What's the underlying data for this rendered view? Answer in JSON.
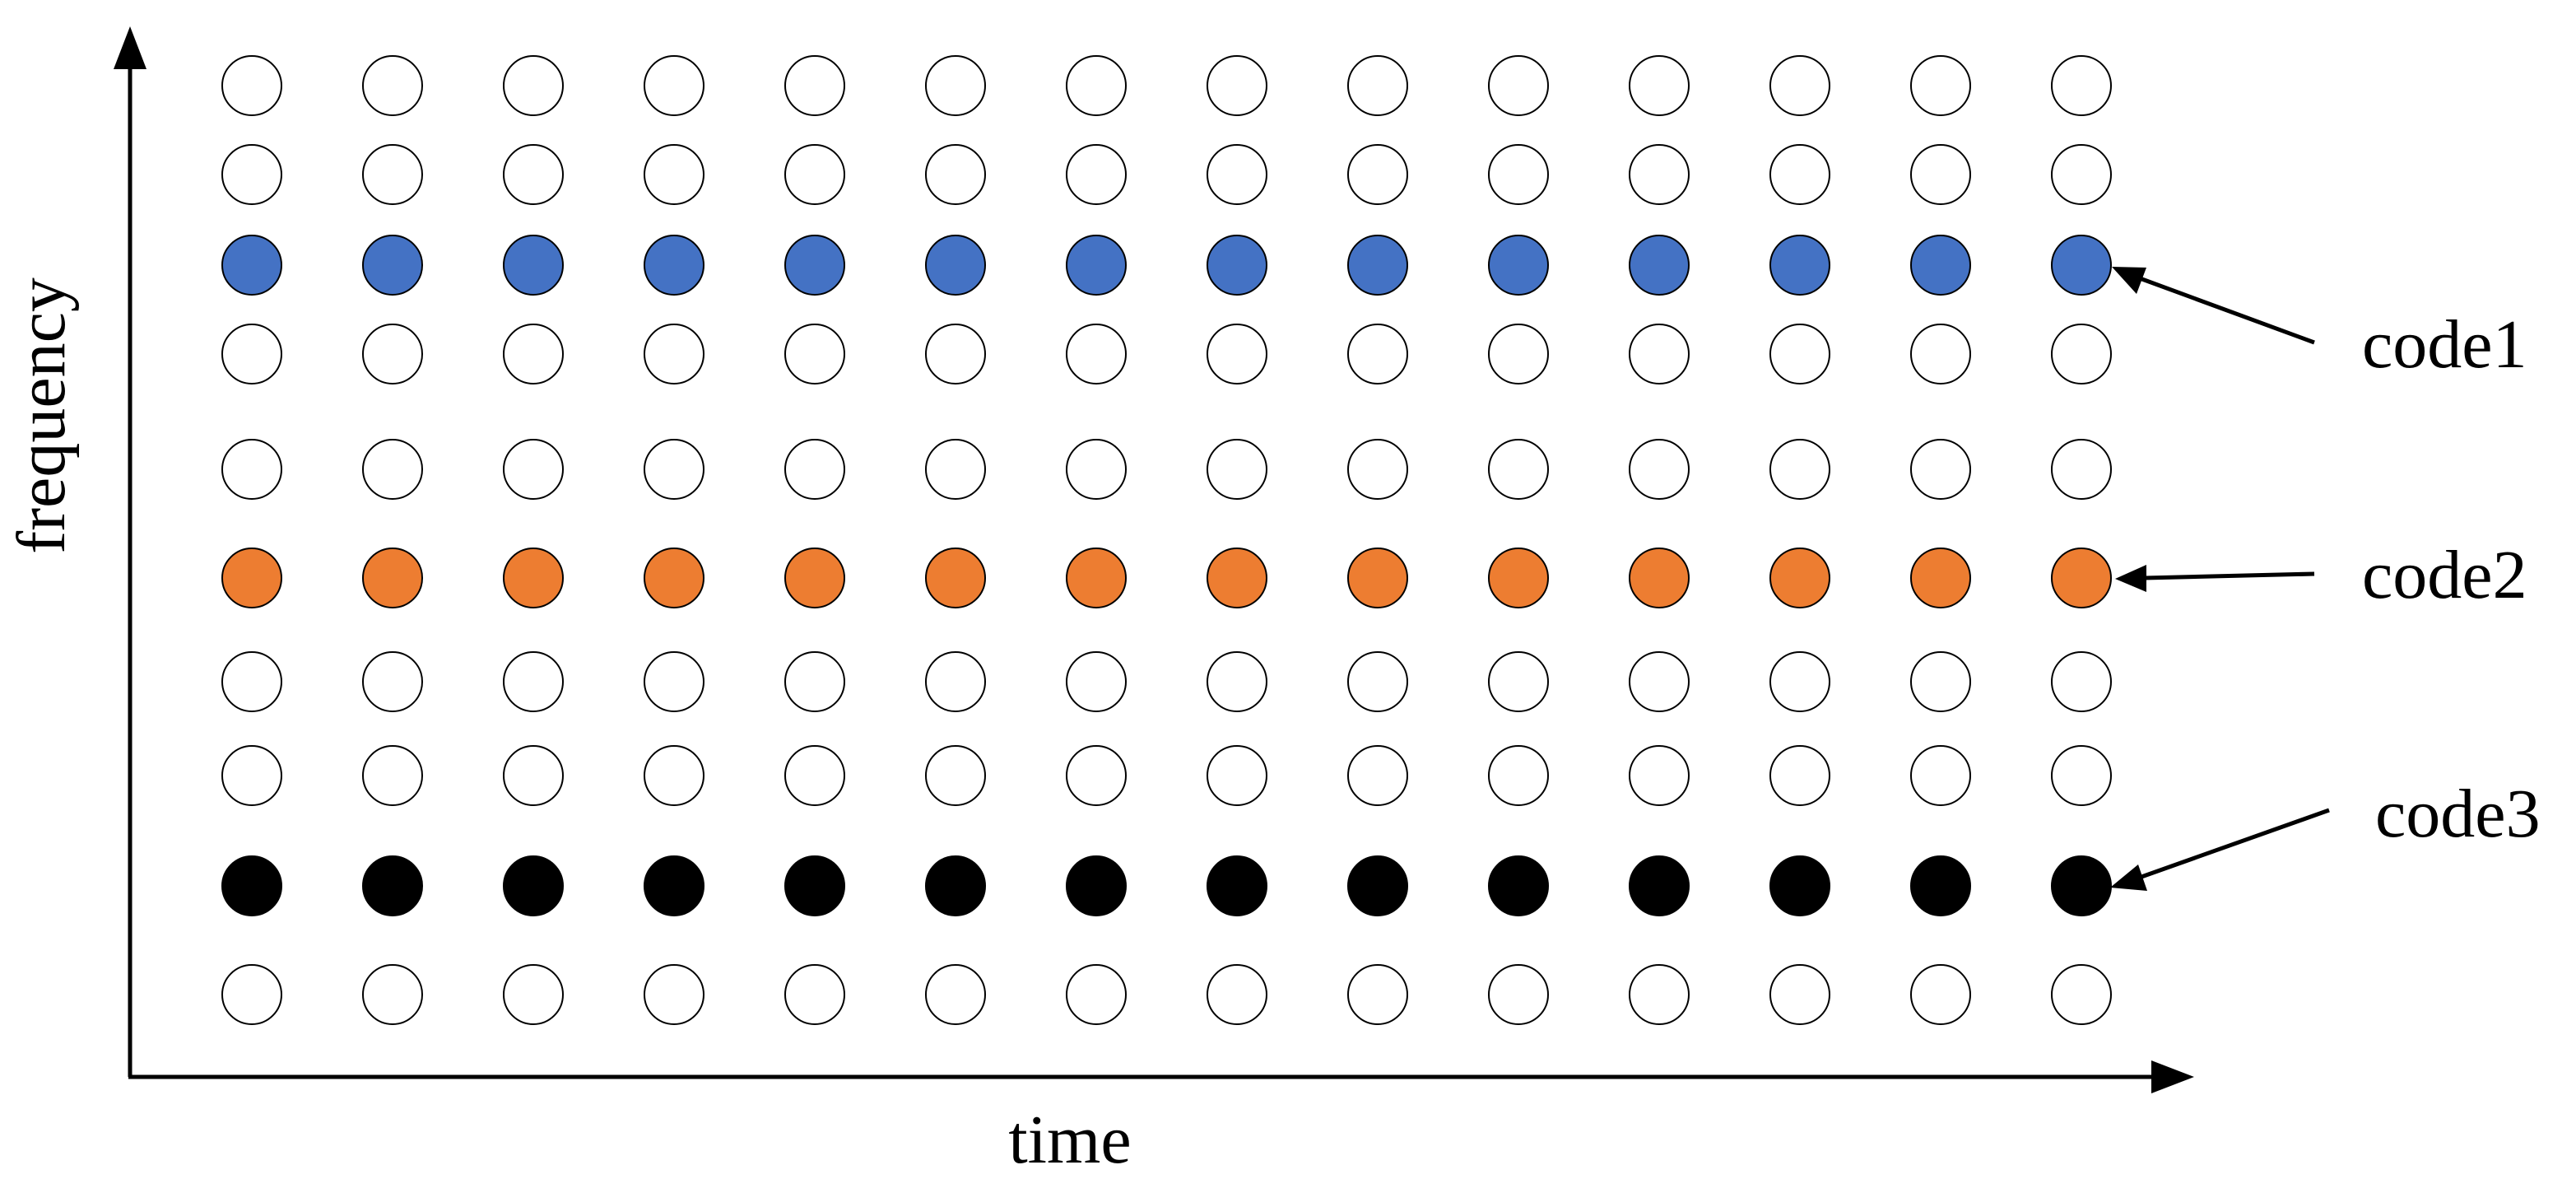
{
  "axes": {
    "x_title": "time",
    "y_title": "frequency"
  },
  "grid": {
    "columns": 14,
    "rows": 10,
    "empty_fill": "#ffffff",
    "outline_color": "#000000"
  },
  "codes": [
    {
      "label": "code1",
      "row": 2,
      "color": "#4472C4"
    },
    {
      "label": "code2",
      "row": 5,
      "color": "#ED7D31"
    },
    {
      "label": "code3",
      "row": 8,
      "color": "#000000"
    }
  ]
}
